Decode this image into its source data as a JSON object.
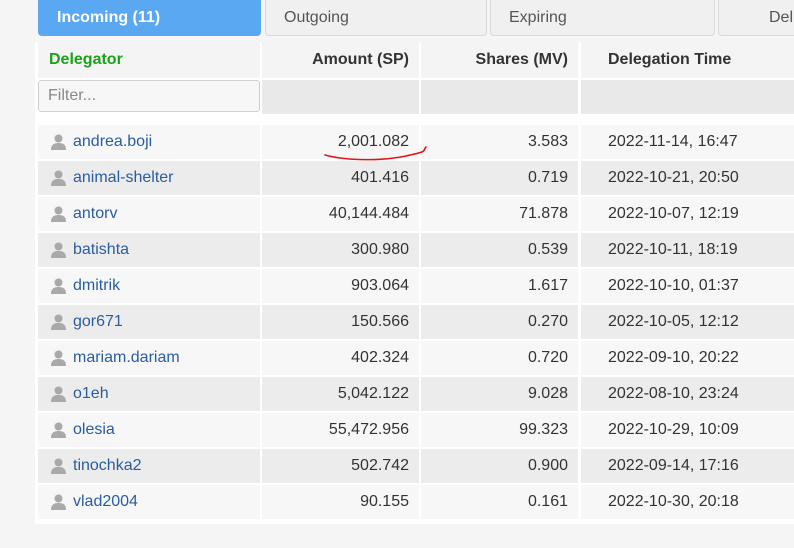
{
  "tabs": [
    {
      "label": "Incoming (11)",
      "active": true
    },
    {
      "label": "Outgoing",
      "active": false
    },
    {
      "label": "Expiring",
      "active": false
    },
    {
      "label": "Del",
      "active": false
    }
  ],
  "table": {
    "headers": {
      "delegator": "Delegator",
      "amount": "Amount (SP)",
      "shares": "Shares (MV)",
      "time": "Delegation Time"
    },
    "filter_placeholder": "Filter...",
    "rows": [
      {
        "name": "andrea.boji",
        "amount": "2,001.082",
        "shares": "3.583",
        "time": "2022-11-14, 16:47"
      },
      {
        "name": "animal-shelter",
        "amount": "401.416",
        "shares": "0.719",
        "time": "2022-10-21, 20:50"
      },
      {
        "name": "antorv",
        "amount": "40,144.484",
        "shares": "71.878",
        "time": "2022-10-07, 12:19"
      },
      {
        "name": "batishta",
        "amount": "300.980",
        "shares": "0.539",
        "time": "2022-10-11, 18:19"
      },
      {
        "name": "dmitrik",
        "amount": "903.064",
        "shares": "1.617",
        "time": "2022-10-10, 01:37"
      },
      {
        "name": "gor671",
        "amount": "150.566",
        "shares": "0.270",
        "time": "2022-10-05, 12:12"
      },
      {
        "name": "mariam.dariam",
        "amount": "402.324",
        "shares": "0.720",
        "time": "2022-09-10, 20:22"
      },
      {
        "name": "o1eh",
        "amount": "5,042.122",
        "shares": "9.028",
        "time": "2022-08-10, 23:24"
      },
      {
        "name": "olesia",
        "amount": "55,472.956",
        "shares": "99.323",
        "time": "2022-10-29, 10:09"
      },
      {
        "name": "tinochka2",
        "amount": "502.742",
        "shares": "0.900",
        "time": "2022-09-14, 17:16"
      },
      {
        "name": "vlad2004",
        "amount": "90.155",
        "shares": "0.161",
        "time": "2022-10-30, 20:18"
      }
    ]
  },
  "colors": {
    "active_tab": "#5aa7f2",
    "delegator_header": "#1aa31a",
    "link": "#2a5d9f",
    "annotation": "#e0161b"
  }
}
